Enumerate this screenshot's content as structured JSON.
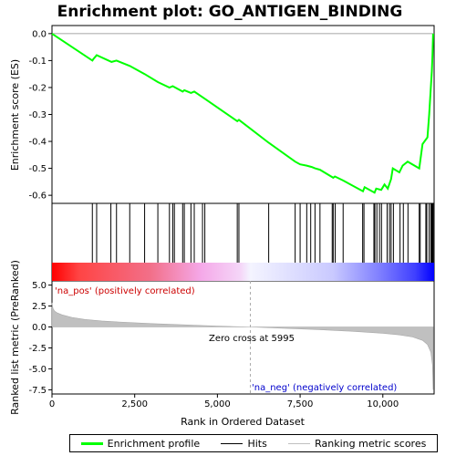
{
  "chart_data": {
    "type": "line",
    "title": "Enrichment plot: GO_ANTIGEN_BINDING",
    "top_panel": {
      "ylabel": "Enrichment score (ES)",
      "yticks": [
        "0.0",
        "-0.1",
        "-0.2",
        "-0.3",
        "-0.4",
        "-0.5",
        "-0.6"
      ],
      "ylim": [
        -0.63,
        0.03
      ],
      "series": [
        {
          "name": "Enrichment profile",
          "x": [
            0,
            1220,
            1250,
            1350,
            1800,
            1950,
            2350,
            2800,
            3200,
            3550,
            3650,
            3950,
            4000,
            4200,
            4300,
            4600,
            5600,
            5650,
            6550,
            7350,
            7500,
            7700,
            7850,
            7950,
            8100,
            8500,
            8550,
            8800,
            9400,
            9450,
            9750,
            9800,
            9950,
            10050,
            10150,
            10250,
            10300,
            10500,
            10600,
            10750,
            11100,
            11200,
            11350,
            11400,
            11450,
            11480,
            11500,
            11520
          ],
          "y": [
            0.0,
            -0.1,
            -0.095,
            -0.08,
            -0.105,
            -0.1,
            -0.12,
            -0.15,
            -0.18,
            -0.2,
            -0.195,
            -0.215,
            -0.21,
            -0.22,
            -0.215,
            -0.24,
            -0.325,
            -0.32,
            -0.405,
            -0.475,
            -0.485,
            -0.49,
            -0.495,
            -0.5,
            -0.505,
            -0.535,
            -0.53,
            -0.545,
            -0.585,
            -0.57,
            -0.59,
            -0.575,
            -0.58,
            -0.56,
            -0.575,
            -0.54,
            -0.5,
            -0.515,
            -0.49,
            -0.475,
            -0.5,
            -0.41,
            -0.385,
            -0.3,
            -0.2,
            -0.14,
            -0.08,
            0.0
          ]
        }
      ]
    },
    "hits_panel": {
      "series_name": "Hits",
      "hit_positions": [
        1220,
        1350,
        1780,
        1950,
        2350,
        2800,
        3200,
        3550,
        3650,
        3700,
        3950,
        4000,
        4200,
        4300,
        4550,
        4620,
        5600,
        5650,
        6550,
        7350,
        7500,
        7700,
        7820,
        7950,
        8100,
        8470,
        8500,
        8560,
        8800,
        9390,
        9430,
        9730,
        9760,
        9820,
        9900,
        9960,
        10130,
        10200,
        10250,
        10320,
        10520,
        10620,
        10760,
        11100,
        11130,
        11300,
        11330,
        11400,
        11450,
        11480,
        11500,
        11520
      ]
    },
    "ranked_panel": {
      "ylabel": "Ranked list metric (PreRanked)",
      "yticks": [
        "5.0",
        "2.5",
        "0.0",
        "-2.5",
        "-5.0",
        "-7.5"
      ],
      "ylim": [
        -8,
        5.5
      ],
      "series_name": "Ranking metric scores",
      "x": [
        0,
        30,
        80,
        150,
        300,
        600,
        1000,
        1500,
        2000,
        3000,
        4000,
        5000,
        5995,
        7000,
        8000,
        9000,
        10000,
        10500,
        10900,
        11200,
        11350,
        11450,
        11500,
        11520
      ],
      "y": [
        2.9,
        2.2,
        1.9,
        1.7,
        1.45,
        1.15,
        0.9,
        0.72,
        0.6,
        0.4,
        0.25,
        0.1,
        0.0,
        -0.15,
        -0.3,
        -0.5,
        -0.75,
        -0.95,
        -1.2,
        -1.6,
        -2.1,
        -3.0,
        -4.5,
        -7.5
      ],
      "pos_label": "'na_pos' (positively correlated)",
      "neg_label": "'na_neg' (negatively correlated)",
      "zero_cross_label": "Zero cross at 5995",
      "zero_cross": 5995
    },
    "xaxis": {
      "label": "Rank in Ordered Dataset",
      "ticks": [
        "0",
        "2,500",
        "5,000",
        "7,500",
        "10,000"
      ],
      "tick_values": [
        0,
        2500,
        5000,
        7500,
        10000
      ],
      "xlim": [
        0,
        11550
      ]
    },
    "legend": {
      "position": "bottom",
      "items": [
        {
          "label": "Enrichment profile",
          "color": "#00ff00"
        },
        {
          "label": "Hits",
          "color": "#000000"
        },
        {
          "label": "Ranking metric scores",
          "color": "#c0c0c0"
        }
      ]
    },
    "colors": {
      "profile": "#00ff00",
      "hits": "#000000",
      "metric_fill": "#c0c0c0",
      "pos_text": "#cc0000",
      "neg_text": "#0000cc"
    }
  }
}
